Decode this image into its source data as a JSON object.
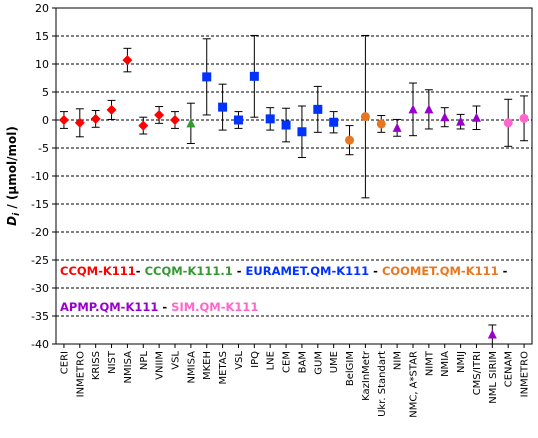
{
  "chart_data": {
    "type": "scatter",
    "ylabel_main": "D",
    "ylabel_sub": "i",
    "ylabel_unit": " / (µmol/mol)",
    "xlabel": "",
    "ylim": [
      -40,
      20
    ],
    "yticks": [
      20,
      15,
      10,
      5,
      0,
      -5,
      -10,
      -15,
      -20,
      -25,
      -30,
      -35,
      -40
    ],
    "grid": "horizontal",
    "categories": [
      "CERI",
      "INMETRO",
      "KRISS",
      "NIST",
      "NMISA",
      "NPL",
      "VNIIM",
      "VSL",
      "NMISA",
      "MKEH",
      "METAS",
      "VSL",
      "IPQ",
      "LNE",
      "CEM",
      "BAM",
      "GUM",
      "UME",
      "BelGIM",
      "KazInMetr",
      "Ukr. Standart",
      "NIM",
      "NMC, A*STAR",
      "NIMT",
      "NMIA",
      "NMIJ",
      "CMS/ITRI",
      "NML SIRIM",
      "CENAM",
      "INMETRO"
    ],
    "series": [
      {
        "name": "CCQM-K111",
        "color": "#ff0000",
        "marker": "diamond",
        "points": [
          {
            "cat": 0,
            "y": 0.0,
            "err": 1.5
          },
          {
            "cat": 1,
            "y": -0.5,
            "err": 2.5
          },
          {
            "cat": 2,
            "y": 0.2,
            "err": 1.5
          },
          {
            "cat": 3,
            "y": 1.8,
            "err": 1.7
          },
          {
            "cat": 4,
            "y": 10.7,
            "err": 2.1
          },
          {
            "cat": 5,
            "y": -1.0,
            "err": 1.5
          },
          {
            "cat": 6,
            "y": 0.9,
            "err": 1.5
          },
          {
            "cat": 7,
            "y": 0.0,
            "err": 1.5
          }
        ]
      },
      {
        "name": "CCQM-K111.1",
        "color": "#339933",
        "marker": "triangle",
        "points": [
          {
            "cat": 8,
            "y": -0.6,
            "err": 3.6
          }
        ]
      },
      {
        "name": "EURAMET.QM-K111",
        "color": "#0033ff",
        "marker": "square",
        "points": [
          {
            "cat": 9,
            "y": 7.7,
            "err": 6.8
          },
          {
            "cat": 10,
            "y": 2.3,
            "err": 4.1
          },
          {
            "cat": 11,
            "y": 0.0,
            "err": 1.5
          },
          {
            "cat": 12,
            "y": 7.8,
            "err": 7.3
          },
          {
            "cat": 13,
            "y": 0.2,
            "err": 2.0
          },
          {
            "cat": 14,
            "y": -0.9,
            "err": 3.0
          },
          {
            "cat": 15,
            "y": -2.1,
            "err": 4.6
          },
          {
            "cat": 16,
            "y": 1.9,
            "err": 4.1
          },
          {
            "cat": 17,
            "y": -0.4,
            "err": 1.9
          }
        ]
      },
      {
        "name": "COOMET.QM-K111",
        "color": "#e87722",
        "marker": "circle",
        "points": [
          {
            "cat": 18,
            "y": -3.6,
            "err": 2.6
          },
          {
            "cat": 19,
            "y": 0.6,
            "err": 14.5
          },
          {
            "cat": 20,
            "y": -0.7,
            "err": 1.5
          }
        ]
      },
      {
        "name": "APMP.QM-K111",
        "color": "#9900cc",
        "marker": "triangle",
        "points": [
          {
            "cat": 21,
            "y": -1.4,
            "err": 1.5
          },
          {
            "cat": 22,
            "y": 1.9,
            "err": 4.7
          },
          {
            "cat": 23,
            "y": 1.9,
            "err": 3.5
          },
          {
            "cat": 24,
            "y": 0.5,
            "err": 1.7
          },
          {
            "cat": 25,
            "y": -0.3,
            "err": 1.3
          },
          {
            "cat": 26,
            "y": 0.4,
            "err": 2.1
          },
          {
            "cat": 27,
            "y": -38.3,
            "err": 1.7
          }
        ]
      },
      {
        "name": "SIM.QM-K111",
        "color": "#ff66cc",
        "marker": "circle",
        "points": [
          {
            "cat": 28,
            "y": -0.5,
            "err": 4.2
          },
          {
            "cat": 29,
            "y": 0.3,
            "err": 4.0
          }
        ]
      }
    ],
    "legend": [
      [
        {
          "text": "CCQM-K111",
          "color": "#ff0000"
        },
        {
          "text": "- ",
          "color": "#000000"
        },
        {
          "text": "CCQM-K111.1",
          "color": "#339933"
        },
        {
          "text": " - ",
          "color": "#000000"
        },
        {
          "text": "EURAMET.QM-K111",
          "color": "#0033ff"
        },
        {
          "text": " - ",
          "color": "#000000"
        },
        {
          "text": "COOMET.QM-K111",
          "color": "#e87722"
        },
        {
          "text": " -",
          "color": "#000000"
        }
      ],
      [
        {
          "text": "APMP.QM-K111",
          "color": "#9900cc"
        },
        {
          "text": " - ",
          "color": "#000000"
        },
        {
          "text": "SIM.QM-K111",
          "color": "#ff66cc"
        }
      ]
    ]
  }
}
